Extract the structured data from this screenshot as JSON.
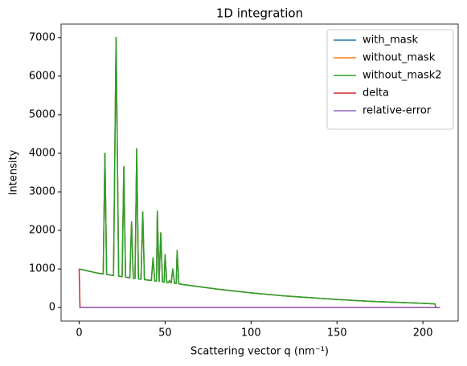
{
  "chart_data": {
    "type": "line",
    "title": "1D integration",
    "x_label": "Scattering vector q (nm⁻¹)",
    "y_label": "Intensity",
    "x": [
      0,
      0.5,
      5,
      10,
      14,
      15,
      16,
      20,
      21.5,
      23,
      25,
      26,
      27,
      29.5,
      30.5,
      31.5,
      32.5,
      33.5,
      34.5,
      36,
      37,
      38,
      42,
      43,
      44,
      45,
      45.5,
      46.5,
      47.5,
      48.5,
      49.5,
      50,
      51,
      52,
      52.5,
      53.5,
      54.5,
      55.5,
      56.5,
      57,
      58,
      60,
      70,
      80,
      100,
      120,
      150,
      170,
      200,
      207,
      207.5,
      210
    ],
    "series": [
      {
        "name": "with_mask",
        "color": "#1f77b4",
        "values": [
          1000,
          995,
          950,
          900,
          870,
          4000,
          860,
          830,
          7000,
          815,
          800,
          3650,
          790,
          770,
          2220,
          760,
          755,
          4120,
          745,
          735,
          2480,
          725,
          700,
          1290,
          690,
          685,
          2500,
          675,
          1940,
          665,
          660,
          1370,
          650,
          645,
          700,
          640,
          1000,
          630,
          625,
          1480,
          615,
          600,
          540,
          480,
          380,
          300,
          210,
          160,
          110,
          95,
          0,
          null
        ]
      },
      {
        "name": "without_mask",
        "color": "#ff7f0e",
        "values": [
          1000,
          995,
          950,
          900,
          870,
          4000,
          860,
          830,
          7000,
          815,
          800,
          3650,
          790,
          770,
          2220,
          760,
          755,
          4120,
          745,
          735,
          2480,
          725,
          700,
          1290,
          690,
          685,
          2500,
          675,
          1940,
          665,
          660,
          1370,
          650,
          645,
          700,
          640,
          1000,
          630,
          625,
          1480,
          615,
          600,
          540,
          480,
          380,
          300,
          210,
          160,
          110,
          95,
          0,
          null
        ]
      },
      {
        "name": "without_mask2",
        "color": "#2ca02c",
        "values": [
          1000,
          995,
          950,
          900,
          870,
          4000,
          860,
          830,
          7000,
          815,
          800,
          3650,
          790,
          770,
          2220,
          760,
          755,
          4120,
          745,
          735,
          2480,
          725,
          700,
          1290,
          690,
          685,
          2500,
          675,
          1940,
          665,
          660,
          1370,
          650,
          645,
          700,
          640,
          1000,
          630,
          625,
          1480,
          615,
          600,
          540,
          480,
          380,
          300,
          210,
          160,
          110,
          95,
          0,
          null
        ]
      },
      {
        "name": "delta",
        "color": "#d62728",
        "values": [
          1000,
          0,
          0,
          0,
          0,
          0,
          0,
          0,
          0,
          0,
          0,
          0,
          0,
          0,
          0,
          0,
          0,
          0,
          0,
          0,
          0,
          0,
          0,
          0,
          0,
          0,
          0,
          0,
          0,
          0,
          0,
          0,
          0,
          0,
          0,
          0,
          0,
          0,
          0,
          0,
          0,
          0,
          0,
          0,
          0,
          0,
          0,
          0,
          0,
          0,
          0,
          0
        ]
      },
      {
        "name": "relative-error",
        "color": "#9467bd",
        "values": [
          0,
          0,
          0,
          0,
          0,
          0,
          0,
          0,
          0,
          0,
          0,
          0,
          0,
          0,
          0,
          0,
          0,
          0,
          0,
          0,
          0,
          0,
          0,
          0,
          0,
          0,
          0,
          0,
          0,
          0,
          0,
          0,
          0,
          0,
          0,
          0,
          0,
          0,
          0,
          0,
          0,
          0,
          0,
          0,
          0,
          0,
          0,
          0,
          0,
          0,
          0,
          0
        ]
      }
    ],
    "xlim": [
      -10.5,
      220.5
    ],
    "ylim": [
      -350,
      7350
    ],
    "xticks": [
      0,
      50,
      100,
      150,
      200
    ],
    "yticks": [
      0,
      1000,
      2000,
      3000,
      4000,
      5000,
      6000,
      7000
    ],
    "grid": false,
    "legend": "upper right"
  }
}
